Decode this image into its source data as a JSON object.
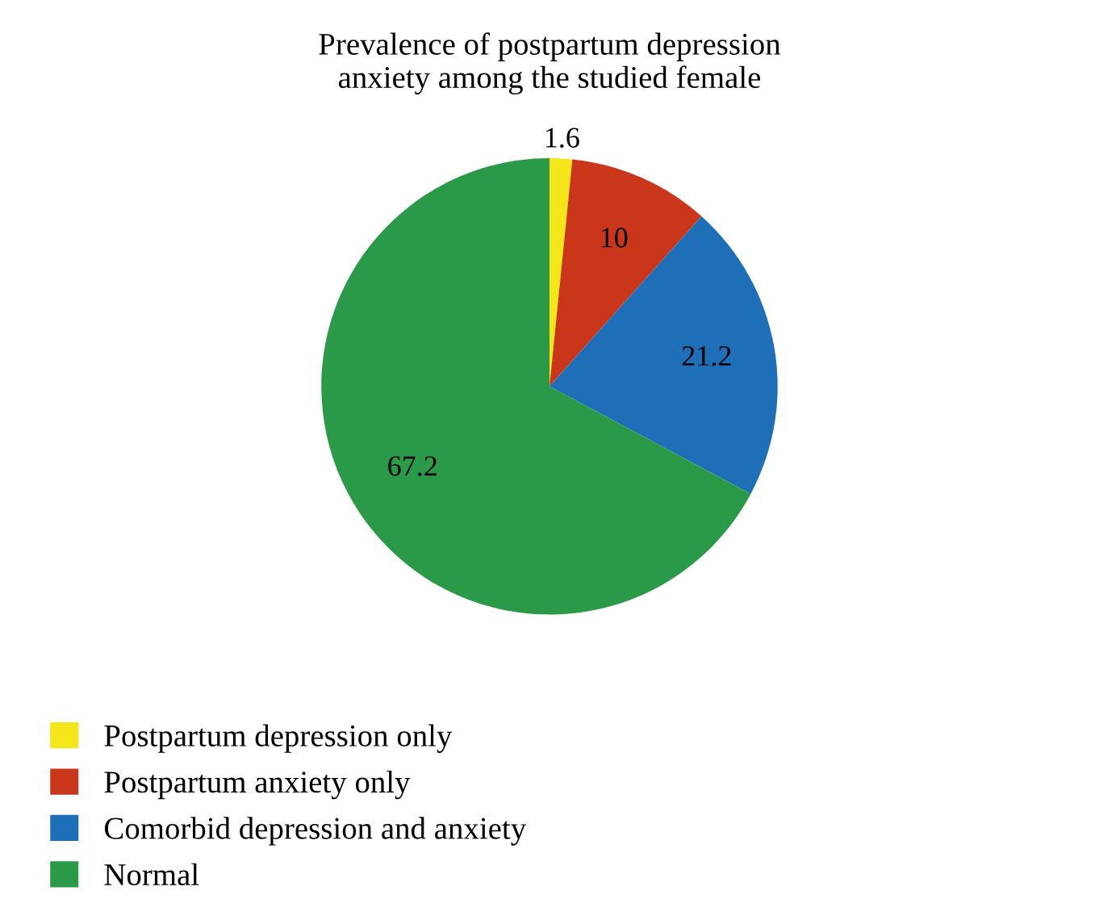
{
  "chart_data": {
    "type": "pie",
    "title": "Prevalence of postpartum depression\nanxiety among the studied female",
    "categories": [
      "Postpartum depression only",
      "Postpartum anxiety only",
      "Comorbid depression and anxiety",
      "Normal"
    ],
    "values": [
      1.6,
      10,
      21.2,
      67.2
    ],
    "colors": [
      "#f5e61a",
      "#c9361a",
      "#1f6fb8",
      "#2a9a48"
    ],
    "data_labels": true,
    "legend": "bottom left"
  }
}
